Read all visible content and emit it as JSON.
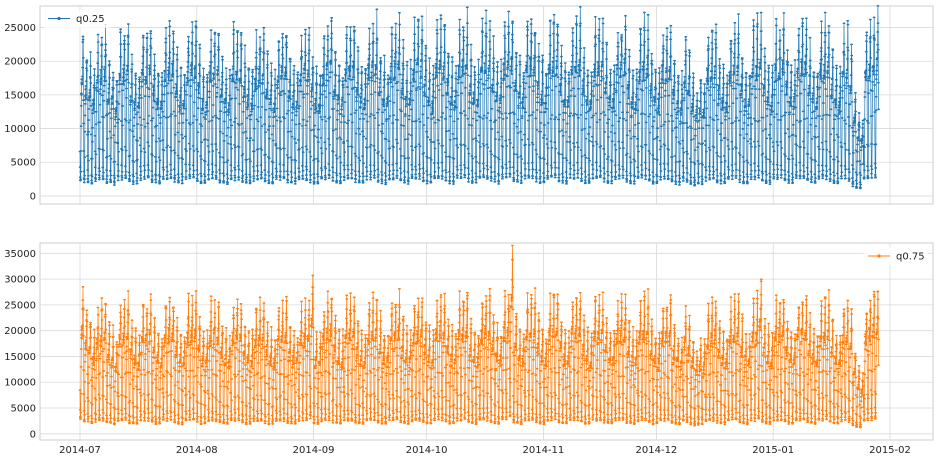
{
  "chart_data": [
    {
      "type": "line",
      "title": "",
      "xlabel": "",
      "ylabel": "",
      "x_range": [
        "2014-07-01",
        "2015-02-01"
      ],
      "x_ticks": [
        "2014-07",
        "2014-08",
        "2014-09",
        "2014-10",
        "2014-11",
        "2014-12",
        "2015-01",
        "2015-02"
      ],
      "ylim": [
        -1200,
        28200
      ],
      "y_ticks": [
        "0",
        "5000",
        "10000",
        "15000",
        "20000",
        "25000"
      ],
      "grid": true,
      "legend_position": "top-left",
      "series": [
        {
          "name": "q0.25",
          "color": "#1f77b4",
          "daily_peak": [
            23000,
            21000,
            20000,
            18500,
            22500,
            24000,
            24500,
            20000,
            19500,
            17000,
            24500,
            24500,
            25000,
            20500,
            18500,
            18000,
            24500,
            24000,
            25500,
            21000,
            19000,
            18000,
            24500,
            25000,
            25500,
            21500,
            19000,
            18500,
            24500,
            25000,
            25500,
            22000,
            19000,
            18500,
            24500,
            25000,
            24500,
            21000,
            19000,
            18000,
            24500,
            24500,
            25000,
            21000,
            19000,
            18500,
            23500,
            24000,
            24500,
            21000,
            19000,
            18000,
            24000,
            24500,
            25000,
            20500,
            19000,
            18500,
            23500,
            24500,
            24500,
            21000,
            18500,
            18000,
            24000,
            25500,
            26500,
            22000,
            19500,
            18500,
            25000,
            25500,
            26000,
            21500,
            19500,
            18500,
            25000,
            25500,
            26000,
            22000,
            19500,
            18500,
            25000,
            25500,
            26500,
            22000,
            19500,
            19000,
            25000,
            25500,
            26000,
            22000,
            19500,
            18500,
            25500,
            26000,
            26000,
            22000,
            19500,
            19000,
            25500,
            26000,
            26500,
            22000,
            19500,
            19000,
            25500,
            26500,
            26000,
            22500,
            20000,
            19000,
            26000,
            26500,
            27000,
            22500,
            20000,
            19000,
            26000,
            26500,
            26000,
            22000,
            20000,
            19000,
            25500,
            26500,
            26500,
            22000,
            19500,
            19000,
            25500,
            26000,
            26500,
            22000,
            19500,
            18500,
            25500,
            26000,
            26000,
            22000,
            19500,
            19000,
            25000,
            25500,
            26000,
            21500,
            19000,
            18500,
            25000,
            25500,
            26000,
            21500,
            19000,
            18500,
            24500,
            25000,
            25000,
            20500,
            18500,
            17500,
            23500,
            22000,
            18000,
            16000,
            17500,
            17000,
            24000,
            24500,
            25500,
            21000,
            19000,
            18500,
            24500,
            25500,
            26000,
            21500,
            19000,
            18500,
            25000,
            25500,
            26000,
            21500,
            19500,
            18500,
            25000,
            25500,
            26500,
            22000,
            19500,
            19000,
            25500,
            26000,
            26000,
            22000,
            19500,
            18500,
            25000,
            25500,
            26000,
            21500,
            19000,
            18500,
            24500,
            25000,
            22000,
            15000,
            12000,
            11000,
            24500,
            25500,
            26000,
            26500
          ]
        },
        {
          "name": "q0.75",
          "color": "#ff7f0e",
          "daily_peak": [
            27000,
            24000,
            22500,
            19500,
            23500,
            25000,
            25500,
            21000,
            20000,
            17500,
            25000,
            25500,
            26000,
            21500,
            19500,
            18500,
            25500,
            25000,
            26000,
            22000,
            19500,
            18500,
            25500,
            26000,
            26000,
            22000,
            19500,
            19000,
            25500,
            25500,
            26000,
            22500,
            19500,
            19000,
            25500,
            25500,
            25000,
            21500,
            19500,
            18500,
            25000,
            25500,
            25500,
            21500,
            19500,
            19000,
            24500,
            25000,
            25000,
            21500,
            19500,
            18500,
            25000,
            25000,
            25500,
            21000,
            19500,
            19000,
            24500,
            25000,
            25500,
            30000,
            19000,
            18500,
            25000,
            26000,
            27000,
            22500,
            20000,
            19000,
            25500,
            26000,
            26500,
            22000,
            20000,
            19000,
            25500,
            26000,
            26500,
            22500,
            20000,
            19000,
            25500,
            26000,
            27000,
            22500,
            20000,
            19500,
            25500,
            26000,
            26500,
            22500,
            20000,
            19000,
            26000,
            26500,
            26500,
            22500,
            20000,
            19500,
            26000,
            26500,
            27000,
            22500,
            20000,
            19500,
            26000,
            27000,
            26500,
            23000,
            20500,
            19500,
            26500,
            27000,
            35000,
            23000,
            20500,
            19500,
            26500,
            27000,
            26500,
            22500,
            20500,
            19500,
            26000,
            27000,
            27000,
            22500,
            20000,
            19500,
            26000,
            26500,
            27000,
            22500,
            20000,
            19000,
            26000,
            26500,
            26500,
            22500,
            20000,
            19500,
            25500,
            26000,
            26500,
            22000,
            19500,
            19000,
            25500,
            26000,
            26500,
            22000,
            19500,
            19000,
            25000,
            25500,
            25500,
            21000,
            19000,
            18000,
            24000,
            22500,
            18500,
            16500,
            18000,
            17500,
            24500,
            25000,
            26000,
            21500,
            19500,
            19000,
            25000,
            26000,
            26500,
            22000,
            19500,
            19000,
            25500,
            26000,
            29500,
            22000,
            20000,
            19000,
            25500,
            26000,
            27000,
            22500,
            20000,
            19500,
            26000,
            26500,
            26500,
            22500,
            20000,
            19000,
            25500,
            26000,
            26500,
            22000,
            19500,
            19000,
            25000,
            25500,
            23000,
            16000,
            12500,
            11500,
            25000,
            26000,
            27500,
            28000
          ]
        }
      ]
    }
  ]
}
